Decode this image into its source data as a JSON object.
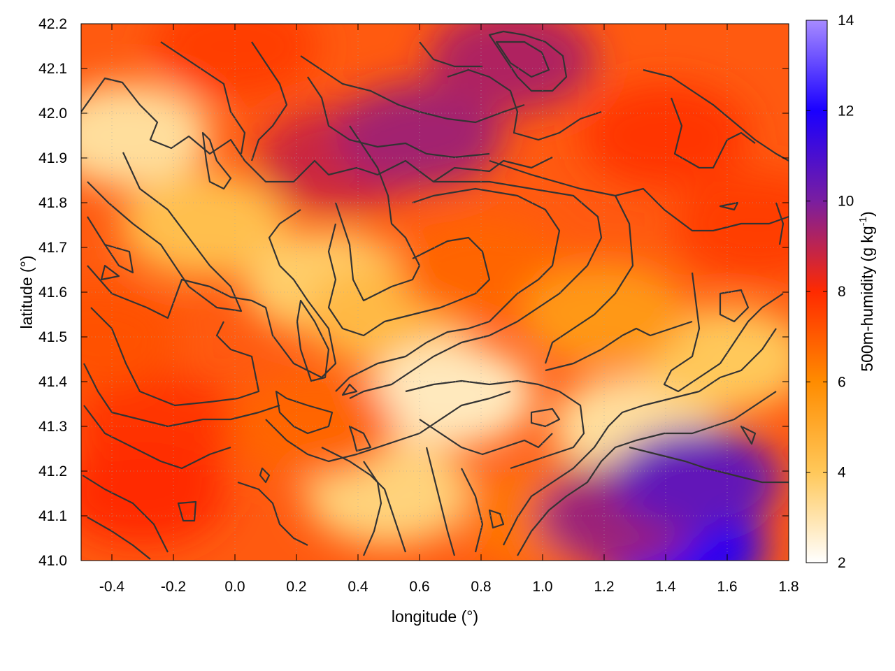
{
  "chart_data": {
    "type": "heatmap",
    "title": "",
    "xlabel": "longitude (°)",
    "ylabel": "latitude (°)",
    "xlim": [
      -0.5,
      1.8
    ],
    "ylim": [
      41.0,
      42.2
    ],
    "x_ticks": [
      "-0.4",
      "-0.2",
      "0.0",
      "0.2",
      "0.4",
      "0.6",
      "0.8",
      "1.0",
      "1.2",
      "1.4",
      "1.6",
      "1.8"
    ],
    "y_ticks": [
      "41.0",
      "41.1",
      "41.2",
      "41.3",
      "41.4",
      "41.5",
      "41.6",
      "41.7",
      "41.8",
      "41.9",
      "42.0",
      "42.1",
      "42.2"
    ],
    "grid": true,
    "colorbar": {
      "label": "500m-humidity (g kg",
      "label_superscript": "-1",
      "label_suffix": ")",
      "range": [
        2,
        14
      ],
      "ticks": [
        "2",
        "4",
        "6",
        "8",
        "10",
        "12",
        "14"
      ],
      "stops": [
        {
          "value": 2,
          "color": "#ffffff"
        },
        {
          "value": 4,
          "color": "#ffc85a"
        },
        {
          "value": 6,
          "color": "#ff8c00"
        },
        {
          "value": 8,
          "color": "#ff2a00"
        },
        {
          "value": 10,
          "color": "#7a1ea0"
        },
        {
          "value": 12,
          "color": "#1a00ff"
        },
        {
          "value": 14,
          "color": "#a78bff"
        }
      ]
    },
    "field_regions": [
      {
        "lon": -0.35,
        "lat": 41.95,
        "value": 3.2
      },
      {
        "lon": -0.1,
        "lat": 41.75,
        "value": 4.3
      },
      {
        "lon": 0.3,
        "lat": 41.62,
        "value": 3.8
      },
      {
        "lon": 0.5,
        "lat": 41.55,
        "value": 4.5
      },
      {
        "lon": 0.7,
        "lat": 41.37,
        "value": 2.8
      },
      {
        "lon": 1.3,
        "lat": 41.3,
        "value": 3.2
      },
      {
        "lon": 0.5,
        "lat": 41.15,
        "value": 3.6
      },
      {
        "lon": 1.6,
        "lat": 41.45,
        "value": 4.0
      },
      {
        "lon": 0.0,
        "lat": 42.15,
        "value": 7.6
      },
      {
        "lon": 0.35,
        "lat": 41.9,
        "value": 8.8
      },
      {
        "lon": 0.6,
        "lat": 41.95,
        "value": 9.4
      },
      {
        "lon": 0.9,
        "lat": 42.12,
        "value": 9.2
      },
      {
        "lon": 1.4,
        "lat": 41.95,
        "value": 7.8
      },
      {
        "lon": 1.7,
        "lat": 41.75,
        "value": 7.6
      },
      {
        "lon": 0.8,
        "lat": 41.65,
        "value": 6.8
      },
      {
        "lon": -0.25,
        "lat": 41.3,
        "value": 7.8
      },
      {
        "lon": -0.3,
        "lat": 41.15,
        "value": 8.0
      },
      {
        "lon": -0.45,
        "lat": 41.5,
        "value": 7.2
      },
      {
        "lon": 0.25,
        "lat": 41.3,
        "value": 6.8
      },
      {
        "lon": 1.0,
        "lat": 41.1,
        "value": 6.5
      },
      {
        "lon": 1.45,
        "lat": 41.03,
        "value": 11.8
      },
      {
        "lon": 1.25,
        "lat": 41.1,
        "value": 9.5
      },
      {
        "lon": 1.5,
        "lat": 41.18,
        "value": 10.5
      },
      {
        "lon": 1.2,
        "lat": 41.55,
        "value": 5.6
      }
    ]
  }
}
